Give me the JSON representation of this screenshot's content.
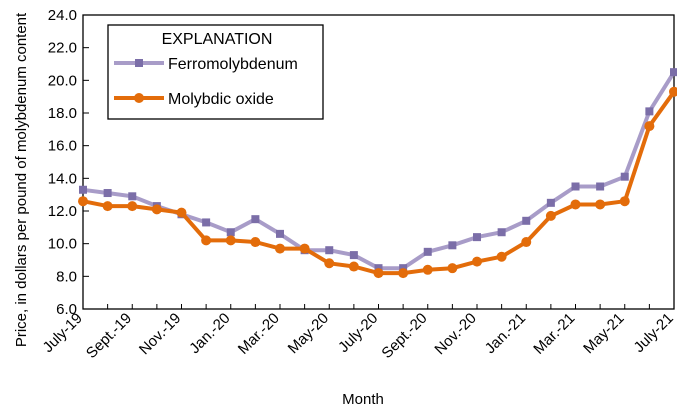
{
  "chart_data": {
    "type": "line",
    "title": "",
    "xlabel": "Month",
    "ylabel": "Price, in dollars per pound of molybdenum content",
    "ylim": [
      6.0,
      24.0
    ],
    "yticks": [
      "6.0",
      "8.0",
      "10.0",
      "12.0",
      "14.0",
      "16.0",
      "18.0",
      "20.0",
      "22.0",
      "24.0"
    ],
    "x": [
      "July-19",
      "Aug-19",
      "Sept.-19",
      "Oct-19",
      "Nov.-19",
      "Dec-19",
      "Jan.-20",
      "Feb-20",
      "Mar.-20",
      "Apr-20",
      "May-20",
      "June-20",
      "July-20",
      "Aug-20",
      "Sept.-20",
      "Oct-20",
      "Nov.-20",
      "Dec-20",
      "Jan.-21",
      "Feb-21",
      "Mar.-21",
      "Apr-21",
      "May-21",
      "June-21",
      "July-21"
    ],
    "xtick_labels": [
      "July-19",
      "Sept.-19",
      "Nov.-19",
      "Jan.-20",
      "Mar.-20",
      "May-20",
      "July-20",
      "Sept.-20",
      "Nov.-20",
      "Jan.-21",
      "Mar.-21",
      "May-21",
      "July-21"
    ],
    "legend": {
      "title": "EXPLANATION",
      "placement": "top-left"
    },
    "series": [
      {
        "name": "Ferromolybdenum",
        "color": "#a89cc8",
        "marker_color": "#7b6ea8",
        "marker": "square",
        "values": [
          13.3,
          13.1,
          12.9,
          12.3,
          11.8,
          11.3,
          10.7,
          11.5,
          10.6,
          9.6,
          9.6,
          9.3,
          8.5,
          8.5,
          9.5,
          9.9,
          10.4,
          10.7,
          11.4,
          12.5,
          13.5,
          13.5,
          14.1,
          18.1,
          20.5
        ]
      },
      {
        "name": "Molybdic oxide",
        "color": "#e36c0a",
        "marker_color": "#e36c0a",
        "marker": "circle",
        "values": [
          12.6,
          12.3,
          12.3,
          12.1,
          11.9,
          10.2,
          10.2,
          10.1,
          9.7,
          9.7,
          8.8,
          8.6,
          8.2,
          8.2,
          8.4,
          8.5,
          8.9,
          9.2,
          10.1,
          11.7,
          12.4,
          12.4,
          12.6,
          17.2,
          19.3
        ]
      }
    ]
  }
}
